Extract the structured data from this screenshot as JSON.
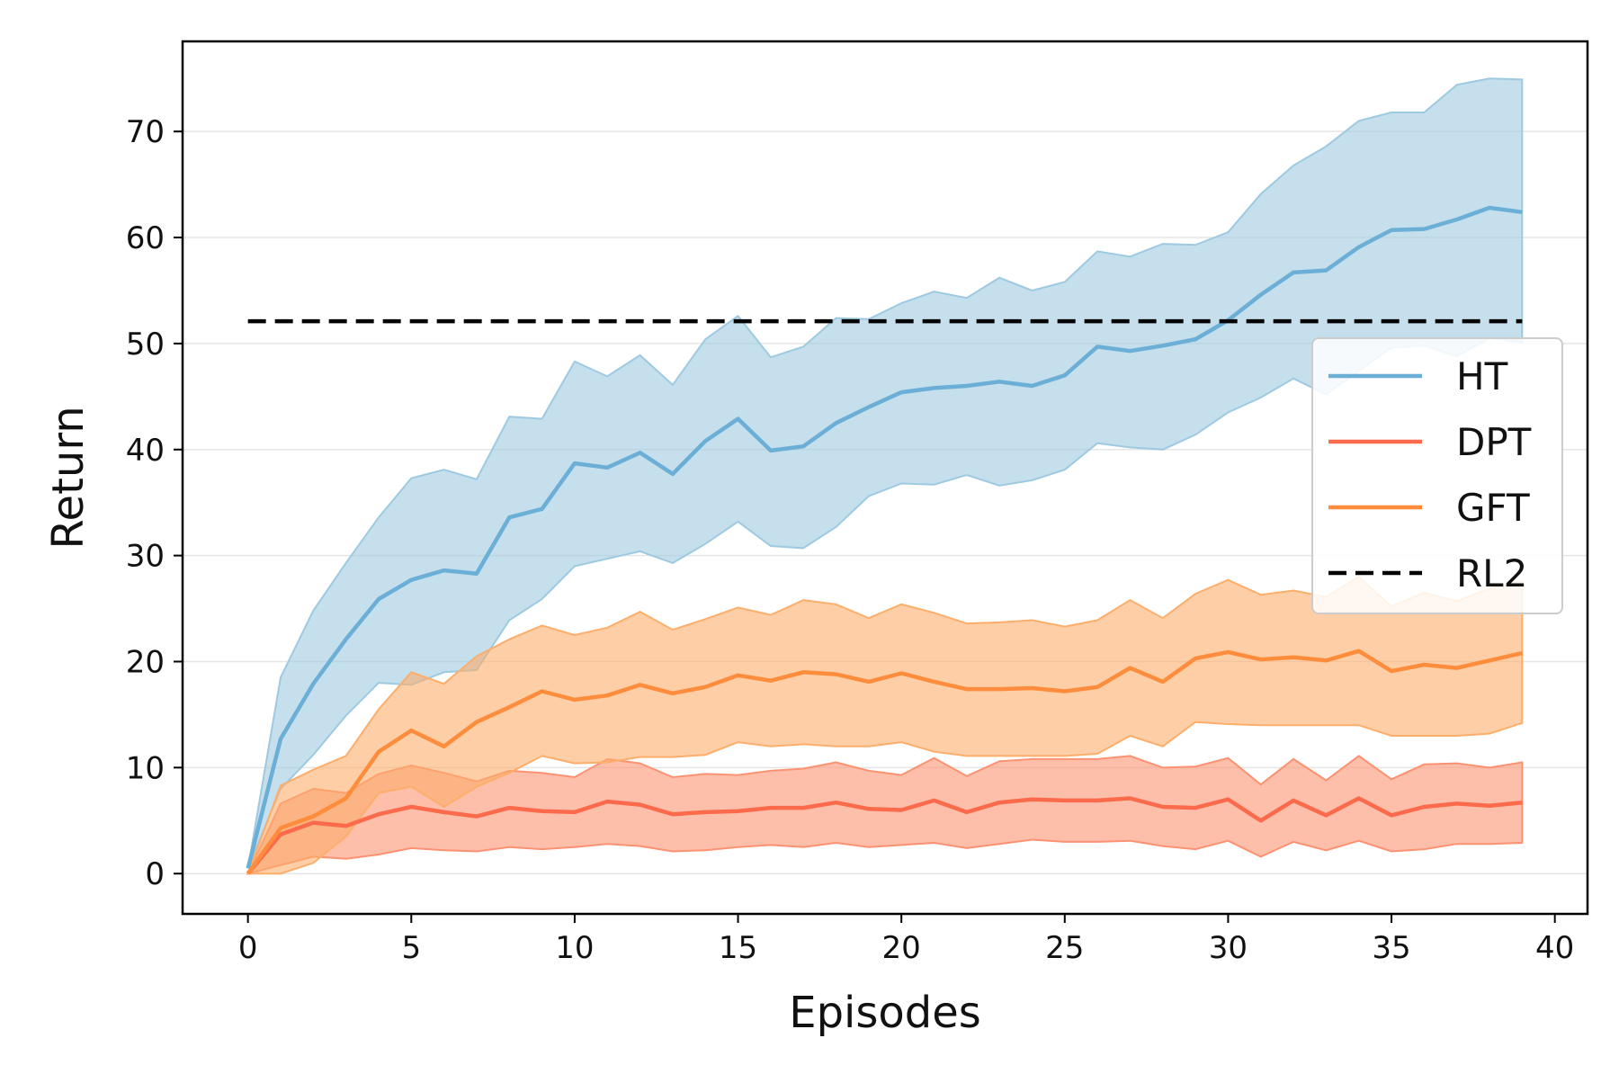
{
  "chart_data": {
    "type": "line",
    "title": "",
    "xlabel": "Episodes",
    "ylabel": "Return",
    "xlim": [
      -2,
      41
    ],
    "ylim": [
      -3.8,
      78.5
    ],
    "xticks": [
      0,
      5,
      10,
      15,
      20,
      25,
      30,
      35,
      40
    ],
    "yticks": [
      0,
      10,
      20,
      30,
      40,
      50,
      60,
      70
    ],
    "grid": "horizontal",
    "legend_position": "center-right",
    "x": [
      0,
      1,
      2,
      3,
      4,
      5,
      6,
      7,
      8,
      9,
      10,
      11,
      12,
      13,
      14,
      15,
      16,
      17,
      18,
      19,
      20,
      21,
      22,
      23,
      24,
      25,
      26,
      27,
      28,
      29,
      30,
      31,
      32,
      33,
      34,
      35,
      36,
      37,
      38,
      39
    ],
    "series": [
      {
        "name": "HT",
        "color": "#6baed6",
        "band_color": "#9ecae1",
        "mean": [
          0.5,
          12.7,
          17.9,
          22.1,
          25.9,
          27.7,
          28.6,
          28.3,
          33.6,
          34.4,
          38.7,
          38.3,
          39.7,
          37.7,
          40.8,
          42.9,
          39.9,
          40.3,
          42.5,
          44.0,
          45.4,
          45.8,
          46.0,
          46.4,
          46.0,
          47.0,
          49.7,
          49.3,
          49.8,
          50.4,
          52.2,
          54.6,
          56.7,
          56.9,
          59.1,
          60.7,
          60.8,
          61.7,
          62.8,
          62.4
        ],
        "upper": [
          0.5,
          18.5,
          24.8,
          29.3,
          33.6,
          37.3,
          38.1,
          37.2,
          43.1,
          42.9,
          48.3,
          46.9,
          48.9,
          46.1,
          50.4,
          52.6,
          48.7,
          49.7,
          52.4,
          52.3,
          53.8,
          54.9,
          54.3,
          56.2,
          55.0,
          55.8,
          58.7,
          58.2,
          59.4,
          59.3,
          60.5,
          64.1,
          66.8,
          68.6,
          71.0,
          71.8,
          71.8,
          74.4,
          75.0,
          74.9
        ],
        "lower": [
          0.5,
          8.0,
          11.2,
          14.9,
          18.0,
          17.8,
          19.0,
          19.2,
          23.9,
          25.9,
          29.0,
          29.7,
          30.4,
          29.3,
          31.1,
          33.2,
          30.9,
          30.7,
          32.7,
          35.6,
          36.8,
          36.7,
          37.6,
          36.6,
          37.1,
          38.1,
          40.6,
          40.2,
          40.0,
          41.4,
          43.5,
          44.9,
          46.7,
          45.2,
          47.4,
          49.6,
          49.8,
          48.8,
          50.5,
          50.1
        ]
      },
      {
        "name": "DPT",
        "color": "#fb6a4a",
        "band_color": "#fc9272",
        "mean": [
          0.0,
          3.7,
          4.8,
          4.5,
          5.6,
          6.3,
          5.8,
          5.4,
          6.2,
          5.9,
          5.8,
          6.8,
          6.5,
          5.6,
          5.8,
          5.9,
          6.2,
          6.2,
          6.7,
          6.1,
          6.0,
          6.9,
          5.8,
          6.7,
          7.0,
          6.9,
          6.9,
          7.1,
          6.3,
          6.2,
          7.0,
          5.0,
          6.9,
          5.5,
          7.1,
          5.5,
          6.3,
          6.6,
          6.4,
          6.7
        ],
        "upper": [
          0.0,
          6.6,
          8.0,
          7.6,
          9.4,
          10.2,
          9.5,
          8.7,
          9.7,
          9.5,
          9.1,
          10.8,
          10.4,
          9.1,
          9.4,
          9.3,
          9.7,
          9.9,
          10.5,
          9.7,
          9.3,
          10.9,
          9.2,
          10.6,
          10.8,
          10.8,
          10.8,
          11.1,
          10.0,
          10.1,
          10.9,
          8.4,
          10.8,
          8.8,
          11.1,
          8.9,
          10.3,
          10.4,
          10.0,
          10.5
        ],
        "lower": [
          0.0,
          0.8,
          1.6,
          1.4,
          1.8,
          2.4,
          2.2,
          2.1,
          2.5,
          2.3,
          2.5,
          2.8,
          2.6,
          2.1,
          2.2,
          2.5,
          2.7,
          2.5,
          2.9,
          2.5,
          2.7,
          2.9,
          2.4,
          2.8,
          3.2,
          3.0,
          3.0,
          3.1,
          2.6,
          2.3,
          3.1,
          1.6,
          3.0,
          2.2,
          3.1,
          2.1,
          2.3,
          2.8,
          2.8,
          2.9
        ]
      },
      {
        "name": "GFT",
        "color": "#fd8d3c",
        "band_color": "#fdae6b",
        "mean": [
          0.0,
          4.3,
          5.4,
          7.1,
          11.5,
          13.5,
          12.0,
          14.3,
          15.7,
          17.2,
          16.4,
          16.8,
          17.8,
          17.0,
          17.6,
          18.7,
          18.2,
          19.0,
          18.8,
          18.1,
          18.9,
          18.1,
          17.4,
          17.4,
          17.5,
          17.2,
          17.6,
          19.4,
          18.1,
          20.3,
          20.9,
          20.2,
          20.4,
          20.1,
          21.0,
          19.1,
          19.7,
          19.4,
          20.1,
          20.8
        ],
        "upper": [
          0.0,
          8.3,
          9.8,
          11.1,
          15.5,
          19.0,
          17.9,
          20.5,
          22.1,
          23.4,
          22.5,
          23.2,
          24.7,
          23.0,
          24.0,
          25.1,
          24.4,
          25.8,
          25.4,
          24.1,
          25.4,
          24.6,
          23.6,
          23.7,
          23.9,
          23.3,
          23.9,
          25.8,
          24.1,
          26.4,
          27.7,
          26.3,
          26.7,
          26.1,
          28.0,
          25.2,
          26.5,
          25.7,
          26.9,
          27.5
        ],
        "lower": [
          0.0,
          0.0,
          1.0,
          3.5,
          7.6,
          8.2,
          6.3,
          8.2,
          9.5,
          11.1,
          10.4,
          10.5,
          11.0,
          11.0,
          11.2,
          12.4,
          12.0,
          12.2,
          12.0,
          12.0,
          12.4,
          11.5,
          11.1,
          11.1,
          11.1,
          11.1,
          11.3,
          13.0,
          12.0,
          14.3,
          14.1,
          14.0,
          14.0,
          14.0,
          14.0,
          13.0,
          13.0,
          13.0,
          13.2,
          14.2
        ]
      },
      {
        "name": "RL2",
        "color": "#000000",
        "style": "dashed",
        "x_range": [
          0,
          39
        ],
        "value": 52.1
      }
    ]
  }
}
